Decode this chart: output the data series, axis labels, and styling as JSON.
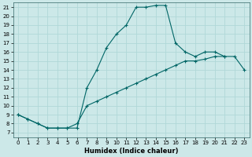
{
  "xlabel": "Humidex (Indice chaleur)",
  "line_color": "#006666",
  "bg_color": "#cce8e8",
  "grid_color": "#b0d8d8",
  "xlim": [
    -0.5,
    23.5
  ],
  "ylim": [
    6.5,
    21.5
  ],
  "xticks": [
    0,
    1,
    2,
    3,
    4,
    5,
    6,
    7,
    8,
    9,
    10,
    11,
    12,
    13,
    14,
    15,
    16,
    17,
    18,
    19,
    20,
    21,
    22,
    23
  ],
  "yticks": [
    7,
    8,
    9,
    10,
    11,
    12,
    13,
    14,
    15,
    16,
    17,
    18,
    19,
    20,
    21
  ],
  "line1_x": [
    0,
    1,
    2,
    3,
    4,
    5,
    6,
    7,
    8,
    9,
    10,
    11,
    12,
    13,
    14,
    15,
    16,
    17,
    18,
    19,
    20,
    21
  ],
  "line1_y": [
    9,
    8.5,
    8.0,
    7.5,
    7.5,
    7.5,
    7.5,
    12,
    14,
    16.5,
    18,
    19,
    21,
    21,
    21.2,
    21.2,
    17,
    16,
    15.5,
    16,
    16,
    15.5
  ],
  "line2_x": [
    0,
    1,
    2,
    3,
    4,
    5,
    6,
    7,
    8,
    9,
    10,
    11,
    12,
    13,
    14,
    15,
    16,
    17,
    18,
    19,
    20,
    21,
    22,
    23
  ],
  "line2_y": [
    9,
    8.5,
    8.0,
    7.5,
    7.5,
    7.5,
    8.0,
    10,
    10.5,
    11,
    11.5,
    12,
    12.5,
    13,
    13.5,
    14,
    14.5,
    15,
    15,
    15.2,
    15.5,
    15.5,
    15.5,
    14
  ],
  "xlabel_fontsize": 6,
  "tick_fontsize": 5
}
